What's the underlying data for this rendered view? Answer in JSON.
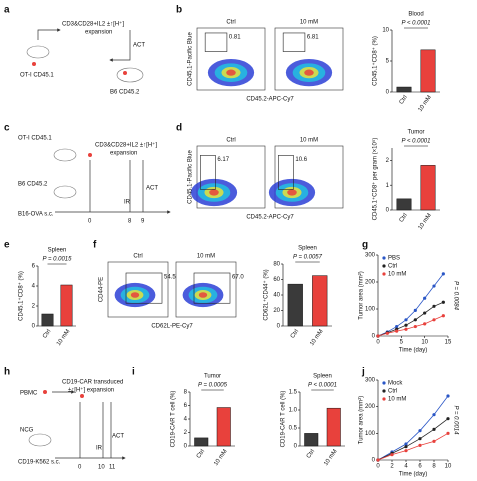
{
  "panel_a": {
    "letter": "a",
    "donor": "OT-I CD45.1",
    "protocol": "CD3&CD28+IL2 ±↑[H⁺]",
    "protocol_2": "expansion",
    "act": "ACT",
    "recipient": "B6 CD45.2"
  },
  "panel_c": {
    "letter": "c",
    "donor": "OT-I CD45.1",
    "protocol": "CD3&CD28+IL2 ±↑[H⁺]",
    "protocol_2": "expansion",
    "recipient": "B6 CD45.2",
    "tumor": "B16-OVA s.c.",
    "ir": "IR",
    "act": "ACT",
    "days": [
      "0",
      "8",
      "9"
    ]
  },
  "panel_h": {
    "letter": "h",
    "donor": "PBMC",
    "protocol": "CD19-CAR transduced",
    "protocol_2": "±↑[H⁺] expansion",
    "recipient": "NCG",
    "tumor": "CD19-K562 s.c.",
    "ir": "IR",
    "act": "ACT",
    "days": [
      "0",
      "10",
      "11"
    ]
  },
  "flow_b": {
    "letter": "b",
    "ctrl": "Ctrl",
    "treated": "10 mM",
    "gates": [
      "0.81",
      "6.81"
    ],
    "ylabel": "CD45.1-Pacific Blue",
    "xlabel": "CD45.2-APC-Cy7"
  },
  "flow_d": {
    "letter": "d",
    "ctrl": "Ctrl",
    "treated": "10 mM",
    "gates": [
      "6.17",
      "10.6"
    ],
    "ylabel": "CD45.1-Pacific Blue",
    "xlabel": "CD45.2-APC-Cy7"
  },
  "flow_f": {
    "letter": "f",
    "ctrl": "Ctrl",
    "treated": "10 mM",
    "gates": [
      "54.5",
      "67.0"
    ],
    "ylabel": "CD44-PE",
    "xlabel": "CD62L-PE-Cy7"
  },
  "chart_data": [
    {
      "type": "bar",
      "title": "Blood",
      "p_value": "P < 0.0001",
      "ylabel": "CD45.1⁺CD8⁺ (%)",
      "categories": [
        "Ctrl",
        "10 mM"
      ],
      "values": [
        0.8,
        6.8
      ],
      "colors": [
        "#3a3a3a",
        "#e8413c"
      ],
      "ylim": [
        0,
        10
      ],
      "yticks": [
        0,
        5,
        10
      ]
    },
    {
      "type": "bar",
      "title": "Tumor",
      "p_value": "P < 0.0001",
      "ylabel": "CD45.1⁺CD8⁺ per gram (×10⁵)",
      "categories": [
        "Ctrl",
        "10 mM"
      ],
      "values": [
        0.45,
        1.8
      ],
      "colors": [
        "#3a3a3a",
        "#e8413c"
      ],
      "ylim": [
        0,
        2.5
      ],
      "yticks": [
        0,
        1,
        2
      ]
    },
    {
      "type": "bar",
      "letter": "e",
      "title": "Spleen",
      "p_value": "P = 0.0015",
      "ylabel": "CD45.1⁺CD8⁺ (%)",
      "categories": [
        "Ctrl",
        "10 mM"
      ],
      "values": [
        1.2,
        4.1
      ],
      "colors": [
        "#3a3a3a",
        "#e8413c"
      ],
      "ylim": [
        0,
        6
      ],
      "yticks": [
        0,
        2,
        4,
        6
      ]
    },
    {
      "type": "bar",
      "title": "Spleen",
      "p_value": "P = 0.0057",
      "ylabel": "CD62L⁺CD44⁺ (%)",
      "categories": [
        "Ctrl",
        "10 mM"
      ],
      "values": [
        54,
        65
      ],
      "colors": [
        "#3a3a3a",
        "#e8413c"
      ],
      "ylim": [
        0,
        80
      ],
      "yticks": [
        0,
        20,
        40,
        60,
        80
      ]
    },
    {
      "type": "line",
      "letter": "g",
      "p_value": "P = 0.0084",
      "ylabel": "Tumor area (mm²)",
      "xlabel": "Time (day)",
      "x": [
        0,
        2,
        4,
        6,
        8,
        10,
        12,
        14
      ],
      "xlim": [
        0,
        15
      ],
      "xticks": [
        0,
        5,
        10,
        15
      ],
      "ylim": [
        0,
        300
      ],
      "yticks": [
        0,
        100,
        200,
        300
      ],
      "series": [
        {
          "name": "PBS",
          "color": "#2a56c6",
          "values": [
            0,
            15,
            35,
            60,
            95,
            140,
            185,
            230
          ]
        },
        {
          "name": "Ctrl",
          "color": "#222222",
          "values": [
            0,
            12,
            25,
            40,
            60,
            85,
            110,
            125
          ]
        },
        {
          "name": "10 mM",
          "color": "#e8413c",
          "values": [
            0,
            10,
            18,
            25,
            35,
            45,
            60,
            75
          ]
        }
      ]
    },
    {
      "type": "bar",
      "letter": "i",
      "title": "Tumor",
      "p_value": "P = 0.0005",
      "ylabel": "CD19-CAR T cell (%)",
      "categories": [
        "Ctrl",
        "10 mM"
      ],
      "values": [
        1.2,
        5.7
      ],
      "colors": [
        "#3a3a3a",
        "#e8413c"
      ],
      "ylim": [
        0,
        8
      ],
      "yticks": [
        0,
        2,
        4,
        6,
        8
      ]
    },
    {
      "type": "bar",
      "title": "Spleen",
      "p_value": "P < 0.0001",
      "ylabel": "CD19-CAR T cell (%)",
      "categories": [
        "Ctrl",
        "10 mM"
      ],
      "values": [
        0.35,
        1.05
      ],
      "colors": [
        "#3a3a3a",
        "#e8413c"
      ],
      "ylim": [
        0,
        1.5
      ],
      "yticks": [
        0,
        0.5,
        {
          "value": 1,
          "label": "1.0"
        },
        1.5
      ]
    },
    {
      "type": "line",
      "letter": "j",
      "p_value": "P = 0.0014",
      "ylabel": "Tumor area (mm²)",
      "xlabel": "Time (day)",
      "x": [
        0,
        2,
        4,
        6,
        8,
        10
      ],
      "xlim": [
        0,
        10
      ],
      "xticks": [
        0,
        2,
        4,
        6,
        8,
        10
      ],
      "ylim": [
        0,
        300
      ],
      "yticks": [
        0,
        100,
        200,
        300
      ],
      "series": [
        {
          "name": "Mock",
          "color": "#2a56c6",
          "values": [
            0,
            30,
            60,
            110,
            170,
            240
          ]
        },
        {
          "name": "Ctrl",
          "color": "#222222",
          "values": [
            0,
            25,
            50,
            80,
            115,
            155
          ]
        },
        {
          "name": "10 mM",
          "color": "#e8413c",
          "values": [
            0,
            20,
            35,
            55,
            70,
            100
          ]
        }
      ]
    }
  ]
}
